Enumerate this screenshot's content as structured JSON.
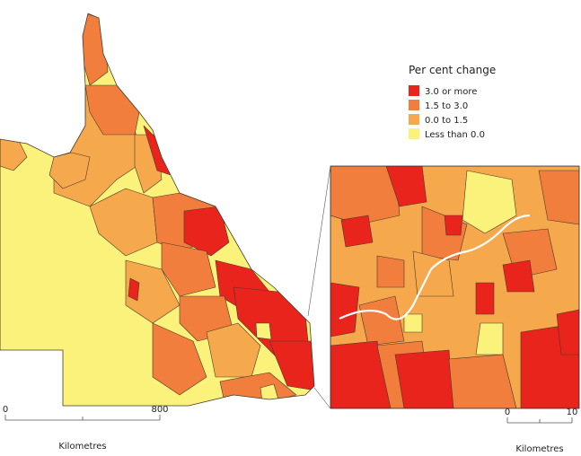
{
  "legend": {
    "title": "Per cent change",
    "items": [
      {
        "label": "3.0 or more",
        "color": "#e8241c"
      },
      {
        "label": "1.5 to 3.0",
        "color": "#f17e3d"
      },
      {
        "label": "0.0 to 1.5",
        "color": "#f6a84c"
      },
      {
        "label": "Less than 0.0",
        "color": "#fbf27c"
      }
    ]
  },
  "scale_bars": [
    {
      "ticks": [
        0,
        800
      ],
      "unit": "Kilometres"
    },
    {
      "ticks": [
        0,
        10
      ],
      "unit": "Kilometres"
    }
  ]
}
